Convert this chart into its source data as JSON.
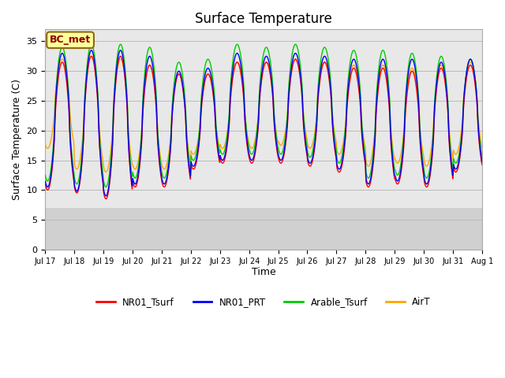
{
  "title": "Surface Temperature",
  "xlabel": "Time",
  "ylabel": "Surface Temperature (C)",
  "annotation": "BC_met",
  "ylim": [
    0,
    37
  ],
  "yticks": [
    0,
    5,
    10,
    15,
    20,
    25,
    30,
    35
  ],
  "series_colors": {
    "NR01_Tsurf": "#FF0000",
    "NR01_PRT": "#0000FF",
    "Arable_Tsurf": "#00CC00",
    "AirT": "#FFA500"
  },
  "legend_labels": [
    "NR01_Tsurf",
    "NR01_PRT",
    "Arable_Tsurf",
    "AirT"
  ],
  "plot_bg_upper": "#E8E8E8",
  "plot_bg_lower": "#D8D8D8",
  "fig_bg_color": "#FFFFFF",
  "n_days": 15,
  "points_per_day": 48
}
